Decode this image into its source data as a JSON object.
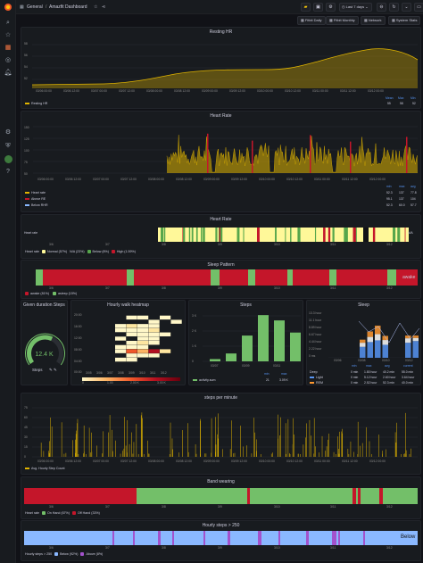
{
  "nav": {
    "breadcrumb_root": "General",
    "breadcrumb_sep": "/",
    "title": "Amazfit Dashboard",
    "time_range": "Last 7 days",
    "links": [
      "Fitbit Daily",
      "Fitbit Monthly",
      "Network",
      "System Stats"
    ]
  },
  "resting_hr": {
    "title": "Resting HR",
    "y_ticks": [
      "58",
      "56",
      "54",
      "52"
    ],
    "x_ticks": [
      "03/06 00:00",
      "03/06 12:00",
      "03/07 00:00",
      "03/07 12:00",
      "03/08 00:00",
      "03/08 12:00",
      "03/09 00:00",
      "03/09 12:00",
      "03/10 00:00",
      "03/10 12:00",
      "03/11 00:00",
      "03/11 12:00",
      "03/12 00:00"
    ],
    "legend_head": [
      "Mean",
      "Max",
      "Min"
    ],
    "series": "Resting HR",
    "mean": "55",
    "max": "58",
    "min": "52"
  },
  "heart_rate": {
    "title": "Heart Rate",
    "y_ticks": [
      "150",
      "125",
      "100",
      "75",
      "50"
    ],
    "x_ticks": [
      "03/06 00:00",
      "03/06 12:00",
      "03/07 00:00",
      "03/07 12:00",
      "03/08 00:00",
      "03/08 12:00",
      "03/09 00:00",
      "03/09 12:00",
      "03/10 00:00",
      "03/10 12:00",
      "03/11 00:00",
      "03/11 12:00",
      "03/12 00:00"
    ],
    "legend_head": [
      "min",
      "max",
      "avg"
    ],
    "rows": [
      {
        "name": "Heart rate",
        "min": "52.3",
        "max": "137",
        "avg": "77.8",
        "color": "#e0b400"
      },
      {
        "name": "Above RE",
        "min": "95.1",
        "max": "137",
        "avg": "104",
        "color": "#c4162a"
      },
      {
        "name": "Below RHR",
        "min": "52.3",
        "max": "60.0",
        "avg": "57.7",
        "color": "#8ab8ff"
      }
    ]
  },
  "hr_state": {
    "title": "Heart Rate",
    "row_label": "Heart rate",
    "right_label": "N/A",
    "x_ticks": [
      "3/6",
      "3/7",
      "3/8",
      "3/9",
      "3/10",
      "3/11",
      "3/12"
    ],
    "legend": [
      {
        "label": "Normal (57%)",
        "color": "#fff899"
      },
      {
        "label": "N/A (23%)",
        "color": "#111217"
      },
      {
        "label": "Below (8%)",
        "color": "#56a64b"
      },
      {
        "label": "High (1.59%)",
        "color": "#c4162a"
      }
    ]
  },
  "sleep_pattern": {
    "title": "Sleep Pattern",
    "right_label": "awake",
    "x_ticks": [
      "3/6",
      "3/7",
      "3/8",
      "3/9",
      "3/10",
      "3/11",
      "3/12"
    ],
    "legend": [
      {
        "label": "awake (81%)",
        "color": "#c4162a"
      },
      {
        "label": "asleep (15%)",
        "color": "#73bf69"
      }
    ]
  },
  "given_steps": {
    "title": "Given duration Steps",
    "value": "12.4 K",
    "label": "Steps",
    "gauge_fraction": 0.6
  },
  "heatmap": {
    "title": "Hourly walk heatmap",
    "y_ticks": [
      "20:00",
      "16:00",
      "12:00",
      "08:00",
      "04:00",
      "00:00"
    ],
    "x_ticks": [
      "3/05",
      "3/06",
      "3/07",
      "3/08",
      "3/09",
      "3/10",
      "3/11",
      "3/12"
    ],
    "scale": [
      "0",
      "1.00",
      "2.00 K",
      "3.00 K"
    ]
  },
  "steps_bar": {
    "title": "Steps",
    "y_ticks": [
      "3 K",
      "2 K",
      "1 K",
      "0"
    ],
    "x_ticks": [
      "03/07",
      "03/09",
      "03/11"
    ],
    "values": [
      150,
      520,
      1700,
      3050,
      2700,
      1900
    ],
    "legend_head": [
      "min",
      "max"
    ],
    "series": "activity.sum",
    "min": "21",
    "max": "3.09 K"
  },
  "sleep": {
    "title": "Sleep",
    "y_ticks": [
      "13.3 hour",
      "11.1 hour",
      "8.89 hour",
      "6.67 hour",
      "4.44 hour",
      "2.22 hour",
      "0 ms"
    ],
    "x_ticks": [
      "03/06",
      "03/08",
      "03/10",
      "03/12"
    ],
    "legend_head": [
      "min",
      "max",
      "avg",
      "current"
    ],
    "rows": [
      {
        "name": "Deep",
        "min": "0 min",
        "max": "1.80 hour",
        "avg": "40.2 min",
        "current": "55.0 min",
        "color": "#ffffff"
      },
      {
        "name": "Light",
        "min": "0 min",
        "max": "5.12 hour",
        "avg": "2.60 hour",
        "current": "3.64 hour",
        "color": "#5794f2"
      },
      {
        "name": "REM",
        "min": "0 min",
        "max": "2.52 hour",
        "avg": "52.3 min",
        "current": "40.0 min",
        "color": "#ff9830"
      }
    ],
    "light": [
      0,
      0,
      0,
      0,
      3.2,
      4.6,
      5.1,
      3.8,
      0,
      0,
      4.4,
      4.9
    ],
    "deep": [
      0,
      0,
      0,
      0,
      1.2,
      1.5,
      1.8,
      1.4,
      0,
      0,
      1.3,
      0.9
    ],
    "rem": [
      0,
      0,
      0,
      0,
      0.9,
      1.6,
      2.5,
      1.2,
      0,
      0,
      0.8,
      0.7
    ]
  },
  "steps_per_minute": {
    "title": "steps per minute",
    "y_ticks": [
      "75",
      "60",
      "45",
      "30",
      "15",
      "0"
    ],
    "x_ticks": [
      "03/06 00:00",
      "03/06 12:00",
      "03/07 00:00",
      "03/07 12:00",
      "03/08 00:00",
      "03/08 12:00",
      "03/09 00:00",
      "03/09 12:00",
      "03/10 00:00",
      "03/10 12:00",
      "03/11 00:00",
      "03/11 12:00",
      "03/12 00:00"
    ],
    "series": "Avg. Hourly Step Count"
  },
  "band_wearing": {
    "title": "Band wearing",
    "row_label": "Heart rate",
    "x_ticks": [
      "3/6",
      "3/7",
      "3/8",
      "3/9",
      "3/10",
      "3/11",
      "3/12"
    ],
    "legend": [
      {
        "label": "On Hand (67%)",
        "color": "#73bf69"
      },
      {
        "label": "Off Hand (33%)",
        "color": "#c4162a"
      }
    ]
  },
  "hourly_steps": {
    "title": "Hourly steps > 250",
    "row_label": "Hourly steps > 250",
    "right_label": "Below",
    "x_ticks": [
      "3/6",
      "3/7",
      "3/8",
      "3/9",
      "3/10",
      "3/11",
      "3/12"
    ],
    "legend": [
      {
        "label": "Below (92%)",
        "color": "#8ab8ff"
      },
      {
        "label": "Above (8%)",
        "color": "#a352cc"
      }
    ]
  }
}
